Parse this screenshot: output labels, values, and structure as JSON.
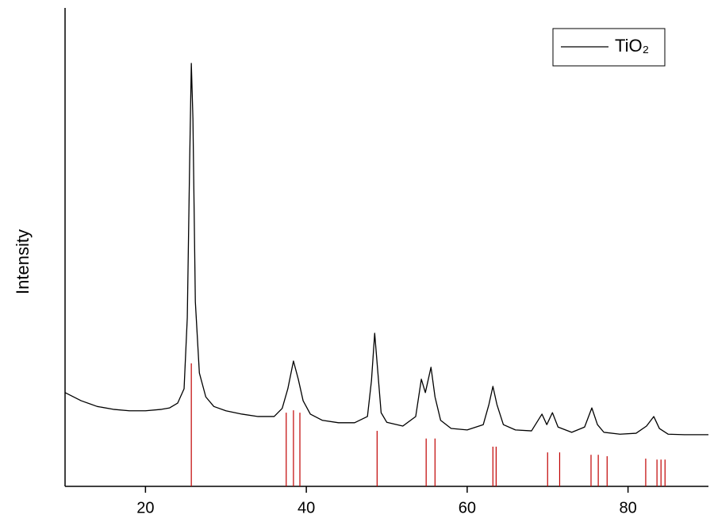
{
  "chart_data": {
    "type": "line",
    "y_label": "Intensity",
    "xlim": [
      10,
      90
    ],
    "xticks": [
      20,
      40,
      60,
      80
    ],
    "ylim": [
      0,
      100
    ],
    "legend": "upper right",
    "series": [
      {
        "name": "TiO₂",
        "color": "#000000",
        "x": [
          10,
          12,
          14,
          16,
          18,
          20,
          22,
          23,
          24,
          24.8,
          25.2,
          25.5,
          25.7,
          25.9,
          26.2,
          26.7,
          27.5,
          28.5,
          30,
          32,
          34,
          36,
          37,
          37.7,
          38.4,
          39,
          39.6,
          40.5,
          42,
          44,
          46,
          47.6,
          48.1,
          48.5,
          48.9,
          49.3,
          50,
          52,
          53.6,
          54.3,
          54.8,
          55.5,
          56,
          56.7,
          58,
          60,
          62,
          62.7,
          63.2,
          63.7,
          64.5,
          66,
          68,
          69.3,
          69.9,
          70.6,
          71.3,
          73,
          74.6,
          75.5,
          76.2,
          77,
          79,
          81,
          82.3,
          83.2,
          83.9,
          85,
          87,
          90
        ],
        "values": [
          19.6,
          17.9,
          16.7,
          16.1,
          15.8,
          15.8,
          16.1,
          16.4,
          17.4,
          20.4,
          35.3,
          68.5,
          88.4,
          76.8,
          38.6,
          23.7,
          18.7,
          16.7,
          15.8,
          15.1,
          14.6,
          14.6,
          16.3,
          20.4,
          26.2,
          22.4,
          17.9,
          15.1,
          13.8,
          13.3,
          13.3,
          14.6,
          22.1,
          32.0,
          23.7,
          15.4,
          13.4,
          12.6,
          14.6,
          22.4,
          19.6,
          24.9,
          18.7,
          13.8,
          12.1,
          11.8,
          12.9,
          17.1,
          20.9,
          17.1,
          12.9,
          11.8,
          11.6,
          15.1,
          12.9,
          15.4,
          12.4,
          11.3,
          12.4,
          16.4,
          12.9,
          11.3,
          10.9,
          11.1,
          12.6,
          14.6,
          12.1,
          10.9,
          10.8,
          10.8
        ]
      }
    ],
    "reference_lines": {
      "color": "#c00000",
      "x": [
        25.7,
        37.5,
        38.4,
        39.2,
        48.8,
        54.9,
        56.0,
        63.2,
        63.6,
        70.0,
        71.5,
        75.4,
        76.3,
        77.4,
        82.2,
        83.6,
        84.1,
        84.6
      ],
      "values": [
        25.7,
        15.4,
        15.9,
        15.4,
        11.6,
        10.0,
        10.0,
        8.3,
        8.3,
        7.1,
        7.1,
        6.6,
        6.6,
        6.3,
        5.8,
        5.6,
        5.6,
        5.6
      ]
    }
  }
}
